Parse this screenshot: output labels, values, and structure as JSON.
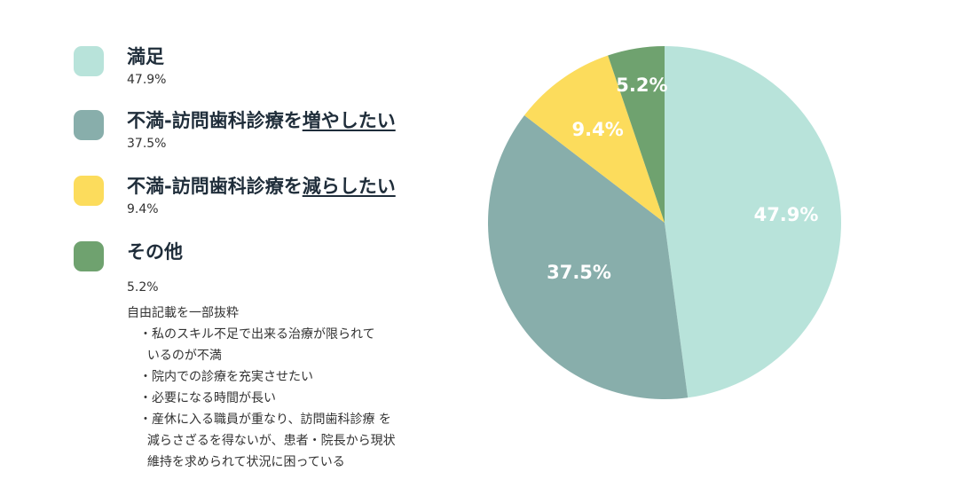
{
  "chart_data": {
    "type": "pie",
    "categories": [
      "満足",
      "不満-訪問歯科診療を増やしたい",
      "不満-訪問歯科診療を減らしたい",
      "その他"
    ],
    "values": [
      47.9,
      37.5,
      9.4,
      5.2
    ],
    "value_labels": [
      "47.9%",
      "37.5%",
      "9.4%",
      "5.2%"
    ],
    "colors": [
      "#b8e3da",
      "#88aeab",
      "#fcdc5c",
      "#6fa26f"
    ],
    "label_color": "#ffffff",
    "legend_position": "left",
    "start_angle_deg": 0,
    "direction": "clockwise"
  },
  "legend": {
    "items": [
      {
        "prefix": "満足",
        "emph": "",
        "suffix": "",
        "value": "47.9%"
      },
      {
        "prefix": "不満-訪問歯科診療を",
        "emph": "増やしたい",
        "suffix": "",
        "value": "37.5%"
      },
      {
        "prefix": "不満-訪問歯科診療を",
        "emph": "減らしたい",
        "suffix": "",
        "value": "9.4%"
      },
      {
        "prefix": "その他",
        "emph": "",
        "suffix": "",
        "value": "5.2%"
      }
    ]
  },
  "notes": {
    "heading": "自由記載を一部抜粋",
    "lines": [
      "・私のスキル不足で出来る治療が限られて",
      "  いるのが不満",
      "・院内での診療を充実させたい",
      "・必要になる時間が長い",
      "・産休に入る職員が重なり、訪問歯科診療 を",
      "  減らさざるを得ないが、患者・院長から現状",
      "  維持を求められて状況に困っている"
    ]
  }
}
